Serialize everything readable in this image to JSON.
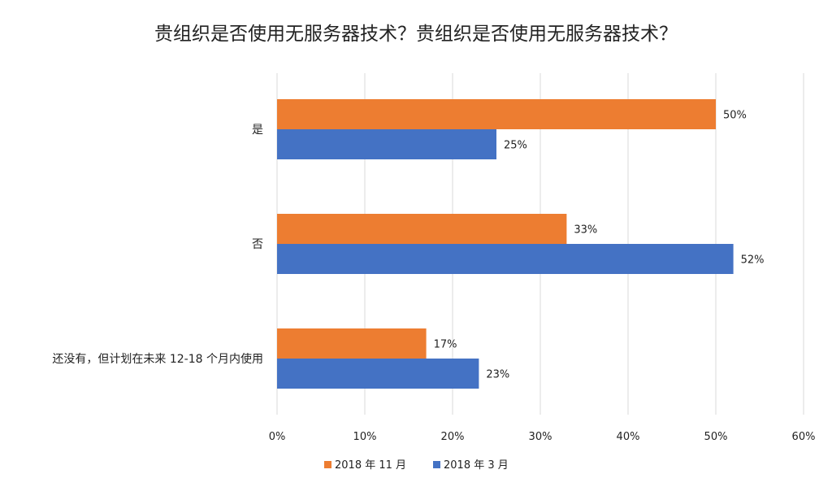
{
  "chart_data": {
    "type": "bar",
    "orientation": "horizontal",
    "title": "贵组织是否使用无服务器技术？贵组织是否使用无服务器技术？",
    "categories": [
      "是",
      "否",
      "还没有，但计划在未来 12-18 个月内使用"
    ],
    "series": [
      {
        "name": "2018 年 11 月",
        "color": "#ED7D31",
        "values": [
          50,
          33,
          17
        ]
      },
      {
        "name": "2018 年 3 月",
        "color": "#4472C4",
        "values": [
          25,
          52,
          23
        ]
      }
    ],
    "x_ticks": [
      "0%",
      "10%",
      "20%",
      "30%",
      "40%",
      "50%",
      "60%"
    ],
    "xlim": [
      0,
      60
    ],
    "value_suffix": "%",
    "grid": true,
    "legend_position": "bottom"
  }
}
